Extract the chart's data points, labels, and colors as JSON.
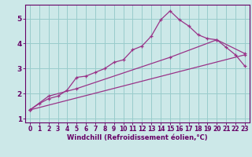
{
  "background_color": "#cce8e8",
  "line_color": "#993388",
  "grid_color": "#99cccc",
  "xlabel": "Windchill (Refroidissement éolien,°C)",
  "xlabel_color": "#660066",
  "tick_color": "#660066",
  "spine_color": "#660066",
  "ylim": [
    0.85,
    5.55
  ],
  "xlim": [
    -0.5,
    23.5
  ],
  "yticks": [
    1,
    2,
    3,
    4,
    5
  ],
  "xticks": [
    0,
    1,
    2,
    3,
    4,
    5,
    6,
    7,
    8,
    9,
    10,
    11,
    12,
    13,
    14,
    15,
    16,
    17,
    18,
    19,
    20,
    21,
    22,
    23
  ],
  "line1_x": [
    0,
    1,
    2,
    3,
    4,
    5,
    6,
    7,
    8,
    9,
    10,
    11,
    12,
    13,
    14,
    15,
    16,
    17,
    18,
    19,
    20,
    21,
    22,
    23
  ],
  "line1_y": [
    1.35,
    1.6,
    1.8,
    1.9,
    2.15,
    2.65,
    2.7,
    2.85,
    3.0,
    3.25,
    3.35,
    3.75,
    3.9,
    4.3,
    4.95,
    5.3,
    4.95,
    4.7,
    4.35,
    4.2,
    4.15,
    3.85,
    3.55,
    3.1
  ],
  "line2_x": [
    0,
    2,
    5,
    15,
    20,
    23
  ],
  "line2_y": [
    1.35,
    1.9,
    2.2,
    3.45,
    4.15,
    3.6
  ],
  "line3_x": [
    0,
    23
  ],
  "line3_y": [
    1.35,
    3.55
  ]
}
